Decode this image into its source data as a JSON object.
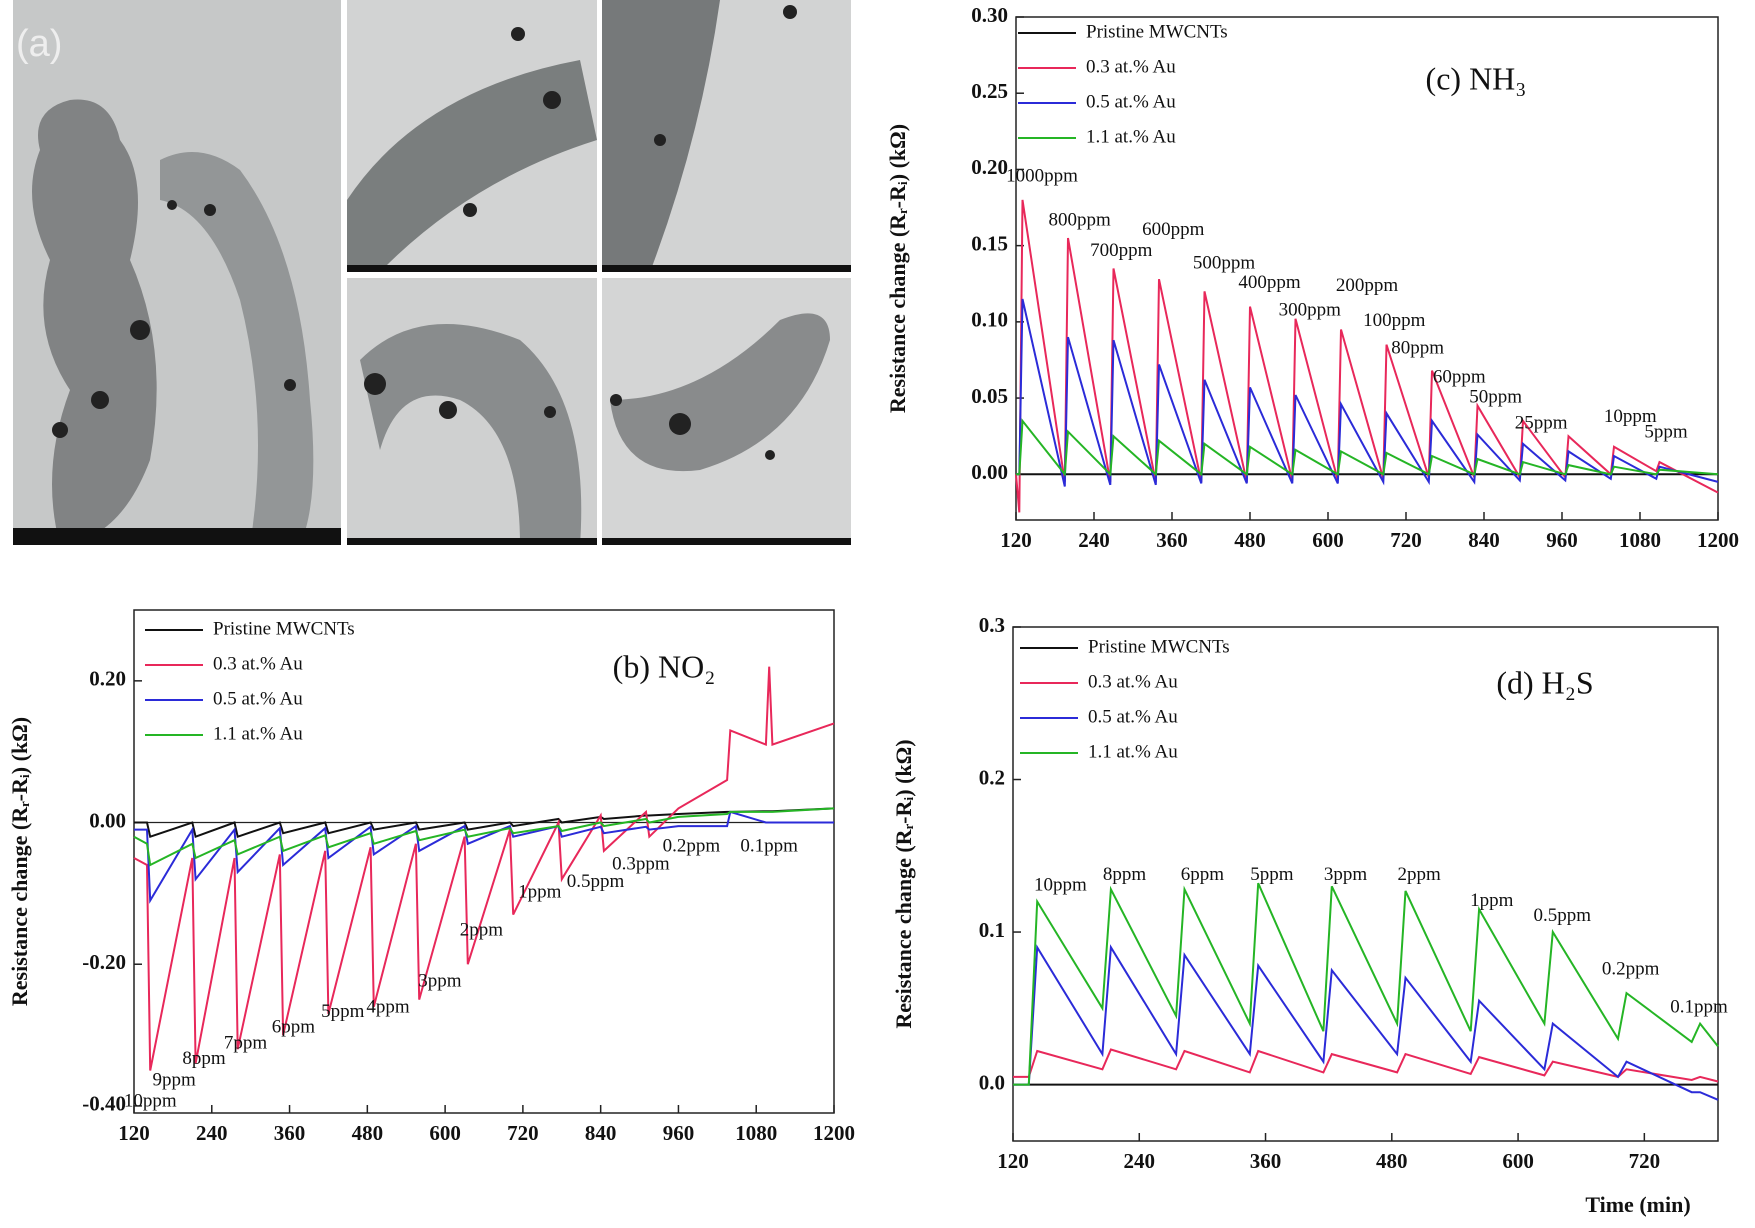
{
  "panel_a": {
    "label": "(a)"
  },
  "chart_data": [
    {
      "type": "line",
      "title": "(c) NH₃",
      "y_label": "Resistance change (Rᵣ-Rᵢ) (kΩ)",
      "xlim": [
        120,
        1200
      ],
      "xticks": [
        120,
        240,
        360,
        480,
        600,
        720,
        840,
        960,
        1080,
        1200
      ],
      "ylim": [
        -0.03,
        0.3
      ],
      "yticks": [
        {
          "value": 0,
          "label": "0.00"
        },
        {
          "value": 0.05,
          "label": "0.05"
        },
        {
          "value": 0.1,
          "label": "0.10"
        },
        {
          "value": 0.15,
          "label": "0.15"
        },
        {
          "value": 0.2,
          "label": "0.20"
        },
        {
          "value": 0.25,
          "label": "0.25"
        },
        {
          "value": 0.3,
          "label": "0.30"
        }
      ],
      "x": [
        120,
        125,
        130,
        195,
        200,
        265,
        270,
        335,
        340,
        405,
        410,
        475,
        480,
        545,
        550,
        615,
        620,
        685,
        690,
        755,
        760,
        825,
        830,
        895,
        900,
        965,
        970,
        1035,
        1040,
        1105,
        1110,
        1200
      ],
      "series": [
        {
          "name": "Pristine MWCNTs",
          "color": "#111111",
          "values": [
            0,
            0,
            0,
            0,
            0,
            0,
            0,
            0,
            0,
            0,
            0,
            0,
            0,
            0,
            0,
            0,
            0,
            0,
            0,
            0,
            0,
            0,
            0,
            0,
            0,
            0,
            0,
            0,
            0,
            0,
            0,
            0
          ]
        },
        {
          "name": "0.3 at.% Au",
          "color": "#e8285a",
          "values": [
            0,
            -0.025,
            0.18,
            -0.005,
            0.155,
            -0.005,
            0.135,
            -0.005,
            0.128,
            -0.005,
            0.12,
            -0.005,
            0.11,
            -0.004,
            0.102,
            -0.004,
            0.095,
            -0.003,
            0.085,
            -0.002,
            0.068,
            -0.002,
            0.045,
            -0.002,
            0.035,
            -0.002,
            0.025,
            0,
            0.018,
            0.002,
            0.008,
            -0.012
          ]
        },
        {
          "name": "0.5 at.% Au",
          "color": "#2b2bd8",
          "values": [
            0,
            0,
            0.115,
            -0.008,
            0.09,
            -0.007,
            0.088,
            -0.007,
            0.072,
            -0.006,
            0.062,
            -0.006,
            0.057,
            -0.006,
            0.052,
            -0.006,
            0.046,
            -0.005,
            0.04,
            -0.005,
            0.035,
            -0.005,
            0.026,
            -0.004,
            0.02,
            -0.004,
            0.015,
            -0.003,
            0.012,
            -0.003,
            0.005,
            -0.005
          ]
        },
        {
          "name": "1.1 at.% Au",
          "color": "#25b525",
          "values": [
            0,
            0,
            0.035,
            0,
            0.028,
            0,
            0.025,
            0,
            0.022,
            0,
            0.02,
            0,
            0.018,
            0,
            0.016,
            0,
            0.015,
            0,
            0.014,
            0,
            0.012,
            0,
            0.01,
            0,
            0.008,
            0,
            0.006,
            0,
            0.005,
            0,
            0.003,
            0
          ]
        }
      ],
      "annotations": [
        {
          "text": "1000ppm",
          "x": 160,
          "y": 0.195
        },
        {
          "text": "800ppm",
          "x": 218,
          "y": 0.166
        },
        {
          "text": "700ppm",
          "x": 282,
          "y": 0.146
        },
        {
          "text": "600ppm",
          "x": 362,
          "y": 0.16
        },
        {
          "text": "500ppm",
          "x": 440,
          "y": 0.138
        },
        {
          "text": "400ppm",
          "x": 510,
          "y": 0.125
        },
        {
          "text": "300ppm",
          "x": 572,
          "y": 0.107
        },
        {
          "text": "200ppm",
          "x": 660,
          "y": 0.123
        },
        {
          "text": "100ppm",
          "x": 702,
          "y": 0.1
        },
        {
          "text": "80ppm",
          "x": 738,
          "y": 0.082
        },
        {
          "text": "60ppm",
          "x": 802,
          "y": 0.063
        },
        {
          "text": "50ppm",
          "x": 858,
          "y": 0.05
        },
        {
          "text": "25ppm",
          "x": 928,
          "y": 0.033
        },
        {
          "text": "10ppm",
          "x": 1065,
          "y": 0.037
        },
        {
          "text": "5ppm",
          "x": 1120,
          "y": 0.027
        }
      ]
    },
    {
      "type": "line",
      "title": "(b) NO₂",
      "y_label": "Resistance change (Rᵣ-Rᵢ) (kΩ)",
      "xlim": [
        120,
        1200
      ],
      "xticks": [
        120,
        240,
        360,
        480,
        600,
        720,
        840,
        960,
        1080,
        1200
      ],
      "ylim": [
        -0.41,
        0.3
      ],
      "yticks": [
        {
          "value": -0.4,
          "label": "-0.40"
        },
        {
          "value": -0.2,
          "label": "-0.20"
        },
        {
          "value": 0,
          "label": "0.00"
        },
        {
          "value": 0.2,
          "label": "0.20"
        }
      ],
      "x": [
        120,
        140,
        145,
        210,
        215,
        275,
        280,
        345,
        350,
        415,
        420,
        485,
        490,
        555,
        560,
        630,
        635,
        700,
        705,
        775,
        780,
        840,
        845,
        910,
        915,
        960,
        1035,
        1040,
        1095,
        1100,
        1105,
        1200
      ],
      "series": [
        {
          "name": "Pristine MWCNTs",
          "color": "#111111",
          "values": [
            0,
            0,
            -0.02,
            0,
            -0.02,
            0,
            -0.02,
            0,
            -0.015,
            0,
            -0.015,
            0,
            -0.01,
            0,
            -0.01,
            0,
            -0.01,
            0,
            -0.005,
            0.005,
            0,
            0.008,
            0.005,
            0.01,
            0.01,
            0.012,
            0.015,
            0.015,
            0.016,
            0.016,
            0.016,
            0.02
          ]
        },
        {
          "name": "0.3 at.% Au",
          "color": "#e8285a",
          "values": [
            -0.05,
            -0.06,
            -0.35,
            -0.05,
            -0.34,
            -0.05,
            -0.32,
            -0.045,
            -0.3,
            -0.04,
            -0.27,
            -0.035,
            -0.26,
            -0.03,
            -0.25,
            -0.02,
            -0.2,
            -0.01,
            -0.13,
            0,
            -0.08,
            0.01,
            -0.04,
            0.015,
            -0.02,
            0.02,
            0.06,
            0.13,
            0.11,
            0.22,
            0.11,
            0.14
          ]
        },
        {
          "name": "0.5 at.% Au",
          "color": "#2b2bd8",
          "values": [
            -0.01,
            -0.01,
            -0.11,
            -0.01,
            -0.08,
            -0.01,
            -0.07,
            -0.008,
            -0.06,
            -0.008,
            -0.05,
            -0.006,
            -0.045,
            -0.005,
            -0.04,
            -0.005,
            -0.03,
            -0.005,
            -0.02,
            -0.005,
            -0.02,
            -0.006,
            -0.015,
            -0.006,
            -0.01,
            -0.005,
            -0.005,
            0.015,
            0,
            0,
            0,
            0
          ]
        },
        {
          "name": "1.1 at.% Au",
          "color": "#25b525",
          "values": [
            -0.02,
            -0.03,
            -0.06,
            -0.03,
            -0.05,
            -0.025,
            -0.045,
            -0.02,
            -0.04,
            -0.018,
            -0.035,
            -0.015,
            -0.03,
            -0.012,
            -0.025,
            -0.01,
            -0.02,
            -0.008,
            -0.015,
            -0.005,
            -0.012,
            0,
            -0.005,
            0.005,
            0,
            0.008,
            0.012,
            0.015,
            0.015,
            0.015,
            0.015,
            0.02
          ]
        }
      ],
      "annotations": [
        {
          "text": "10ppm",
          "x": 145,
          "y": -0.395
        },
        {
          "text": "9ppm",
          "x": 182,
          "y": -0.365
        },
        {
          "text": "8ppm",
          "x": 228,
          "y": -0.335
        },
        {
          "text": "7ppm",
          "x": 292,
          "y": -0.313
        },
        {
          "text": "6ppm",
          "x": 366,
          "y": -0.29
        },
        {
          "text": "5ppm",
          "x": 442,
          "y": -0.268
        },
        {
          "text": "4ppm",
          "x": 512,
          "y": -0.262
        },
        {
          "text": "3ppm",
          "x": 592,
          "y": -0.225
        },
        {
          "text": "2ppm",
          "x": 656,
          "y": -0.153
        },
        {
          "text": "1ppm",
          "x": 746,
          "y": -0.1
        },
        {
          "text": "0.5ppm",
          "x": 832,
          "y": -0.085
        },
        {
          "text": "0.3ppm",
          "x": 902,
          "y": -0.06
        },
        {
          "text": "0.2ppm",
          "x": 980,
          "y": -0.035
        },
        {
          "text": "0.1ppm",
          "x": 1100,
          "y": -0.035
        }
      ]
    },
    {
      "type": "line",
      "title": "(d) H₂S",
      "y_label": "Resistance change (Rᵣ-Rᵢ) (kΩ)",
      "x_label": "Time (min)",
      "xlim": [
        120,
        790
      ],
      "xticks": [
        120,
        240,
        360,
        480,
        600,
        720
      ],
      "ylim": [
        -0.037,
        0.3
      ],
      "yticks": [
        {
          "value": 0,
          "label": "0.0"
        },
        {
          "value": 0.1,
          "label": "0.1"
        },
        {
          "value": 0.2,
          "label": "0.2"
        },
        {
          "value": 0.3,
          "label": "0.3"
        }
      ],
      "x": [
        120,
        135,
        143,
        205,
        213,
        275,
        283,
        345,
        353,
        415,
        423,
        485,
        493,
        555,
        563,
        625,
        633,
        695,
        703,
        765,
        773,
        790
      ],
      "series": [
        {
          "name": "Pristine MWCNTs",
          "color": "#111111",
          "values": [
            0,
            0,
            0,
            0,
            0,
            0,
            0,
            0,
            0,
            0,
            0,
            0,
            0,
            0,
            0,
            0,
            0,
            0,
            0,
            0,
            0,
            0
          ]
        },
        {
          "name": "0.3 at.% Au",
          "color": "#e8285a",
          "values": [
            0.005,
            0.005,
            0.022,
            0.01,
            0.023,
            0.01,
            0.022,
            0.008,
            0.022,
            0.008,
            0.02,
            0.008,
            0.02,
            0.007,
            0.018,
            0.006,
            0.015,
            0.005,
            0.01,
            0.003,
            0.005,
            0.002
          ]
        },
        {
          "name": "0.5 at.% Au",
          "color": "#2b2bd8",
          "values": [
            0,
            0,
            0.09,
            0.02,
            0.09,
            0.02,
            0.085,
            0.02,
            0.078,
            0.015,
            0.075,
            0.02,
            0.07,
            0.015,
            0.055,
            0.01,
            0.04,
            0.005,
            0.015,
            -0.005,
            -0.005,
            -0.01
          ]
        },
        {
          "name": "1.1 at.% Au",
          "color": "#25b525",
          "values": [
            0,
            0,
            0.12,
            0.05,
            0.128,
            0.045,
            0.128,
            0.04,
            0.132,
            0.035,
            0.13,
            0.04,
            0.127,
            0.035,
            0.115,
            0.04,
            0.1,
            0.03,
            0.06,
            0.028,
            0.04,
            0.025
          ]
        }
      ],
      "annotations": [
        {
          "text": "10ppm",
          "x": 165,
          "y": 0.13
        },
        {
          "text": "8ppm",
          "x": 226,
          "y": 0.137
        },
        {
          "text": "6ppm",
          "x": 300,
          "y": 0.137
        },
        {
          "text": "5ppm",
          "x": 366,
          "y": 0.137
        },
        {
          "text": "3ppm",
          "x": 436,
          "y": 0.137
        },
        {
          "text": "2ppm",
          "x": 506,
          "y": 0.137
        },
        {
          "text": "1ppm",
          "x": 575,
          "y": 0.12
        },
        {
          "text": "0.5ppm",
          "x": 642,
          "y": 0.11
        },
        {
          "text": "0.2ppm",
          "x": 707,
          "y": 0.075
        },
        {
          "text": "0.1ppm",
          "x": 772,
          "y": 0.05
        }
      ]
    }
  ]
}
